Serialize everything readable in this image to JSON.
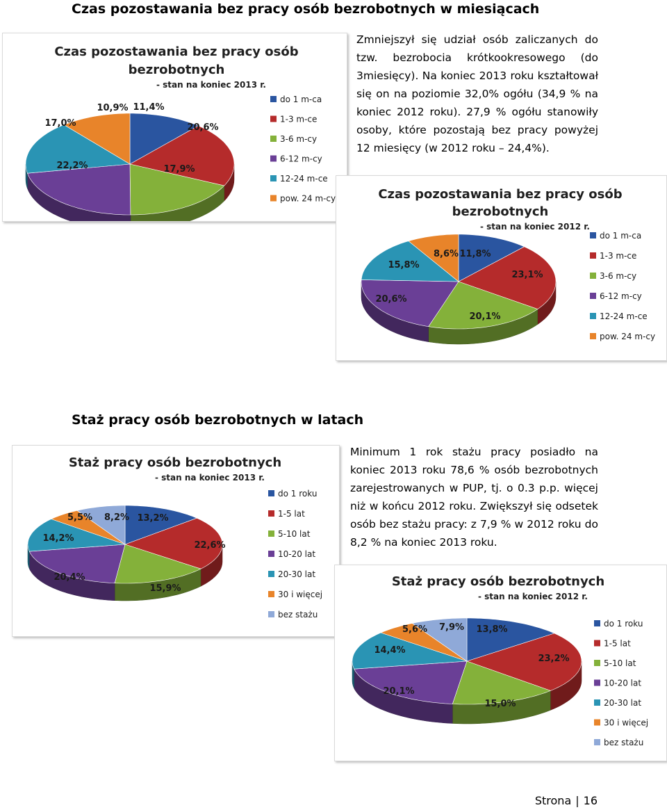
{
  "sections": {
    "unemployment_time": {
      "title": "Czas pozostawania bez pracy osób bezrobotnych w miesiącach",
      "paragraph": "Zmniejszył się udział osób zaliczanych do tzw. bezrobocia krótkookresowego (do 3miesięcy). Na koniec 2013 roku kształtował się on na poziomie 32,0% ogółu (34,9 % na koniec 2012 roku). 27,9 % ogółu stanowiły osoby, które pozostają bez pracy powyżej 12 miesięcy (w 2012 roku – 24,4%)."
    },
    "work_experience": {
      "title": "Staż pracy osób bezrobotnych w latach",
      "paragraph": "Minimum 1 rok stażu pracy posiadło na koniec 2013 roku 78,6 % osób bezrobotnych zarejestrowanych w PUP, tj. o 0.3 p.p. więcej niż w końcu 2012 roku. Zwiększył się odsetek osób bez stażu pracy: z 7,9 % w 2012 roku do 8,2 % na koniec 2013 roku."
    }
  },
  "footer": {
    "label": "Strona",
    "page": "16"
  },
  "chart_data": [
    {
      "type": "pie",
      "title": "Czas pozostawania bez pracy osób bezrobotnych",
      "subtitle": "- stan na koniec 2013 r.",
      "categories": [
        "do 1 m-ca",
        "1-3 m-ce",
        "3-6 m-cy",
        "6-12 m-cy",
        "12-24 m-ce",
        "pow. 24 m-cy"
      ],
      "values": [
        11.4,
        20.6,
        17.9,
        22.2,
        17.0,
        10.9
      ],
      "labels": [
        "11,4%",
        "20,6%",
        "17,9%",
        "22,2%",
        "17,0%",
        "10,9%"
      ],
      "colors": [
        "#2a55a0",
        "#b52b2b",
        "#84b13a",
        "#6a3f96",
        "#2a94b4",
        "#e8842a"
      ],
      "legend": "right"
    },
    {
      "type": "pie",
      "title": "Czas pozostawania bez pracy osób bezrobotnych",
      "subtitle": "- stan na koniec 2012 r.",
      "categories": [
        "do 1 m-ca",
        "1-3 m-ce",
        "3-6 m-cy",
        "6-12 m-cy",
        "12-24 m-ce",
        "pow. 24 m-cy"
      ],
      "values": [
        11.8,
        23.1,
        20.1,
        20.6,
        15.8,
        8.6
      ],
      "labels": [
        "11,8%",
        "23,1%",
        "20,1%",
        "20,6%",
        "15,8%",
        "8,6%"
      ],
      "colors": [
        "#2a55a0",
        "#b52b2b",
        "#84b13a",
        "#6a3f96",
        "#2a94b4",
        "#e8842a"
      ],
      "legend": "right"
    },
    {
      "type": "pie",
      "title": "Staż pracy osób bezrobotnych",
      "subtitle": "- stan na koniec 2013 r.",
      "categories": [
        "do 1 roku",
        "1-5 lat",
        "5-10 lat",
        "10-20 lat",
        "20-30 lat",
        "30 i więcej",
        "bez stażu"
      ],
      "values": [
        13.2,
        22.6,
        15.9,
        20.4,
        14.2,
        5.5,
        8.2
      ],
      "labels": [
        "13,2%",
        "22,6%",
        "15,9%",
        "20,4%",
        "14,2%",
        "5,5%",
        "8,2%"
      ],
      "colors": [
        "#2a55a0",
        "#b52b2b",
        "#84b13a",
        "#6a3f96",
        "#2a94b4",
        "#e8842a",
        "#8fa9d8"
      ],
      "legend": "right"
    },
    {
      "type": "pie",
      "title": "Staż pracy osób bezrobotnych",
      "subtitle": "- stan na koniec 2012 r.",
      "categories": [
        "do 1 roku",
        "1-5 lat",
        "5-10 lat",
        "10-20 lat",
        "20-30 lat",
        "30 i więcej",
        "bez stażu"
      ],
      "values": [
        13.8,
        23.2,
        15.0,
        20.1,
        14.4,
        5.6,
        7.9
      ],
      "labels": [
        "13,8%",
        "23,2%",
        "15,0%",
        "20,1%",
        "14,4%",
        "5,6%",
        "7,9%"
      ],
      "colors": [
        "#2a55a0",
        "#b52b2b",
        "#84b13a",
        "#6a3f96",
        "#2a94b4",
        "#e8842a",
        "#8fa9d8"
      ],
      "legend": "right"
    }
  ]
}
